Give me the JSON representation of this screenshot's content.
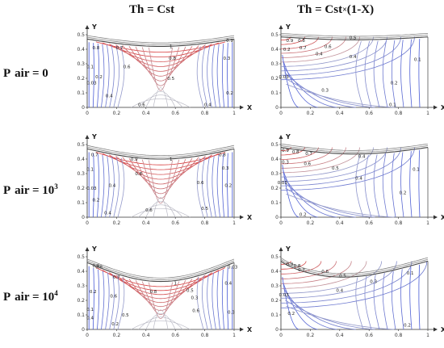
{
  "columns": [
    {
      "prefix": "Th = Cst",
      "op": "",
      "suffix": ""
    },
    {
      "prefix": "Th = Cst",
      "op": "×",
      "suffix": "(1-X)"
    }
  ],
  "rows": [
    {
      "base": "P",
      "sub": "air",
      "rel": " = ",
      "value": "0",
      "exp": ""
    },
    {
      "base": "P",
      "sub": "air",
      "rel": " = ",
      "value": "10",
      "exp": "3"
    },
    {
      "base": "P",
      "sub": "air",
      "rel": " = ",
      "value": "10",
      "exp": "4"
    }
  ],
  "axis": {
    "x_label": "X",
    "y_label": "Y",
    "x_ticks": [
      "0",
      "0.2",
      "0.4",
      "0.6",
      "0.8",
      "1"
    ],
    "y_ticks": [
      "0",
      "0.1",
      "0.2",
      "0.3",
      "0.4",
      "0.5"
    ]
  },
  "colors": {
    "warm": "#d83b3b",
    "cold": "#3b4fd8",
    "mid": "#b9b9c4",
    "wall": "#555555"
  },
  "panels": [
    {
      "id": "r1c1",
      "labels": [
        "0.9",
        "0.8",
        "0.7",
        "1",
        "0.8",
        "0.6",
        "0.5",
        "0.3",
        "0.1",
        "0.2",
        "0.03",
        "0.4",
        "0.6",
        "0.4",
        "0.2"
      ]
    },
    {
      "id": "r1c2",
      "labels": [
        "0.9",
        "0.8",
        "0.7",
        "0.5",
        "0.6",
        "0.4",
        "0.4",
        "0.1",
        "0.03",
        "0.2",
        "0.3",
        "0.2",
        "0.1"
      ]
    },
    {
      "id": "r2c1",
      "labels": [
        "0.7",
        "0.9",
        "1",
        "0.8",
        "0.1",
        "0.8",
        "0.3",
        "0.03",
        "0.4",
        "0.6",
        "0.2",
        "0.2",
        "0.6",
        "0.5",
        "0.4"
      ]
    },
    {
      "id": "r2c2",
      "labels": [
        "0.9",
        "0.8",
        "0.7",
        "0.6",
        "0.4",
        "0.5",
        "0.3",
        "0.4",
        "0.1",
        "0.03",
        "0.2",
        "0.2"
      ]
    },
    {
      "id": "r3c1",
      "labels": [
        "0.9",
        "0.8",
        "0.7",
        "1",
        "0.03",
        "0.4",
        "0.2",
        "0.6",
        "0.8",
        "0.5",
        "0.3",
        "0.1",
        "0.3",
        "0.6",
        "0.5",
        "0.4",
        "0.2"
      ]
    },
    {
      "id": "r3c2",
      "labels": [
        "0.9",
        "0.8",
        "0.7",
        "0.6",
        "0.5",
        "0.4",
        "0.3",
        "0.1",
        "0.03",
        "0.2",
        "0.2"
      ]
    }
  ]
}
